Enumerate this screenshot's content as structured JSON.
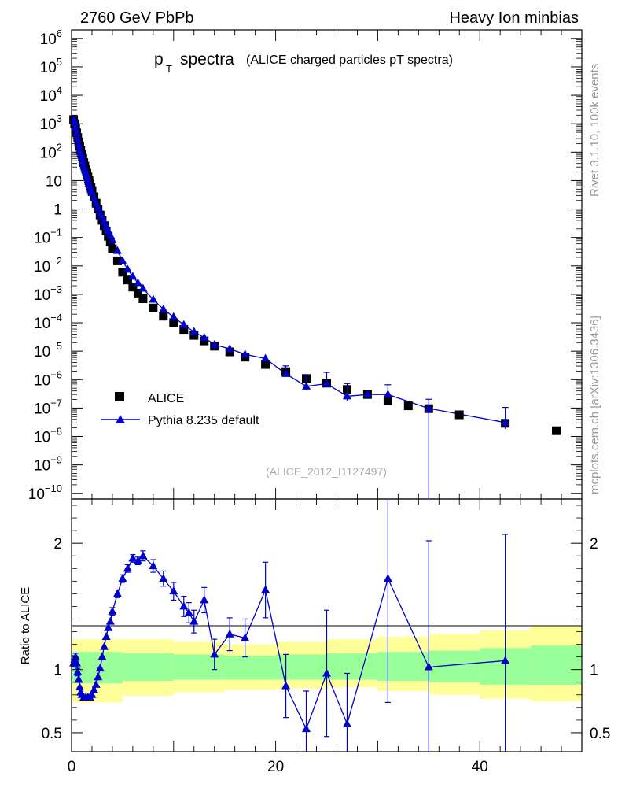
{
  "header": {
    "left": "2760 GeV PbPb",
    "right": "Heavy Ion minbias"
  },
  "side_labels": {
    "version": "Rivet 3.1.10,  100k events",
    "source": "mcplots.cern.ch [arXiv:1306.3436]"
  },
  "chart_data": [
    {
      "type": "scatter",
      "panel": "main",
      "title": "p",
      "title_subscript": "T",
      "title_main": "spectra",
      "subtitle": "(ALICE charged particles pT spectra)",
      "analysis_tag": "(ALICE_2012_I1127497)",
      "xlim": [
        0,
        50
      ],
      "yscale": "log",
      "ylim_log10": [
        -10.2,
        6.3
      ],
      "y_ticks": [
        {
          "exp": 6,
          "base": "10",
          "sup": "6"
        },
        {
          "exp": 5,
          "base": "10",
          "sup": "5"
        },
        {
          "exp": 4,
          "base": "10",
          "sup": "4"
        },
        {
          "exp": 3,
          "base": "10",
          "sup": "3"
        },
        {
          "exp": 2,
          "base": "10",
          "sup": "2"
        },
        {
          "exp": 1,
          "base": "10",
          "sup": ""
        },
        {
          "exp": 0,
          "base": "1",
          "sup": ""
        },
        {
          "exp": -1,
          "base": "10",
          "sup": "−1"
        },
        {
          "exp": -2,
          "base": "10",
          "sup": "−2"
        },
        {
          "exp": -3,
          "base": "10",
          "sup": "−3"
        },
        {
          "exp": -4,
          "base": "10",
          "sup": "−4"
        },
        {
          "exp": -5,
          "base": "10",
          "sup": "−5"
        },
        {
          "exp": -6,
          "base": "10",
          "sup": "−6"
        },
        {
          "exp": -7,
          "base": "10",
          "sup": "−7"
        },
        {
          "exp": -8,
          "base": "10",
          "sup": "−8"
        },
        {
          "exp": -9,
          "base": "10",
          "sup": "−9"
        },
        {
          "exp": -10,
          "base": "10",
          "sup": "−10"
        }
      ],
      "legend": [
        {
          "label": "ALICE",
          "marker": "square",
          "color": "#000000"
        },
        {
          "label": "Pythia 8.235 default",
          "marker": "triangle",
          "color": "#0000cc"
        }
      ],
      "series": [
        {
          "name": "ALICE",
          "color": "#000000",
          "points": [
            [
              0.2,
              1400
            ],
            [
              0.3,
              1000
            ],
            [
              0.4,
              700
            ],
            [
              0.5,
              480
            ],
            [
              0.6,
              330
            ],
            [
              0.7,
              230
            ],
            [
              0.8,
              160
            ],
            [
              0.9,
              115
            ],
            [
              1.0,
              82
            ],
            [
              1.1,
              60
            ],
            [
              1.2,
              43
            ],
            [
              1.3,
              32
            ],
            [
              1.4,
              24
            ],
            [
              1.5,
              18
            ],
            [
              1.6,
              13.5
            ],
            [
              1.7,
              10
            ],
            [
              1.8,
              7.6
            ],
            [
              1.9,
              5.8
            ],
            [
              2.0,
              4.4
            ],
            [
              2.2,
              2.7
            ],
            [
              2.4,
              1.6
            ],
            [
              2.6,
              1.0
            ],
            [
              2.8,
              0.62
            ],
            [
              3.0,
              0.4
            ],
            [
              3.2,
              0.26
            ],
            [
              3.4,
              0.17
            ],
            [
              3.6,
              0.11
            ],
            [
              3.8,
              0.07
            ],
            [
              4.0,
              0.04
            ],
            [
              4.5,
              0.015
            ],
            [
              5.0,
              0.006
            ],
            [
              5.5,
              0.0032
            ],
            [
              6.0,
              0.0018
            ],
            [
              6.5,
              0.0011
            ],
            [
              7.0,
              0.0007
            ],
            [
              8.0,
              0.00033
            ],
            [
              9.0,
              0.00017
            ],
            [
              10.0,
              0.0001
            ],
            [
              11.0,
              5.8e-05
            ],
            [
              12.0,
              3.6e-05
            ],
            [
              13.0,
              2.3e-05
            ],
            [
              14.0,
              1.5e-05
            ],
            [
              15.5,
              9.5e-06
            ],
            [
              17.0,
              6.2e-06
            ],
            [
              19.0,
              3.4e-06
            ],
            [
              21.0,
              1.9e-06
            ],
            [
              23.0,
              1.1e-06
            ],
            [
              25.0,
              7.5e-07
            ],
            [
              27.0,
              4.5e-07
            ],
            [
              29.0,
              3e-07
            ],
            [
              31.0,
              1.8e-07
            ],
            [
              33.0,
              1.2e-07
            ],
            [
              35.0,
              9.5e-08
            ],
            [
              38.0,
              5.8e-08
            ],
            [
              42.5,
              2.9e-08
            ],
            [
              47.5,
              1.6e-08
            ]
          ]
        },
        {
          "name": "Pythia 8.235 default",
          "color": "#0000cc",
          "points": [
            [
              0.2,
              1420,
              0
            ],
            [
              0.3,
              1060,
              0
            ],
            [
              0.4,
              720,
              0
            ],
            [
              0.5,
              460,
              0
            ],
            [
              0.6,
              290,
              0
            ],
            [
              0.7,
              185,
              0
            ],
            [
              0.8,
              124,
              0
            ],
            [
              0.9,
              89,
              0
            ],
            [
              1.0,
              65,
              0
            ],
            [
              1.1,
              47,
              0
            ],
            [
              1.2,
              34,
              0
            ],
            [
              1.3,
              25,
              0
            ],
            [
              1.4,
              18.6,
              0
            ],
            [
              1.5,
              14,
              0
            ],
            [
              1.6,
              10.5,
              0
            ],
            [
              1.7,
              8,
              0
            ],
            [
              1.8,
              6.1,
              0
            ],
            [
              1.9,
              4.7,
              0
            ],
            [
              2.0,
              3.7,
              0
            ],
            [
              2.2,
              2.4,
              0
            ],
            [
              2.4,
              1.6,
              0
            ],
            [
              2.6,
              1.1,
              0
            ],
            [
              2.8,
              0.72,
              0
            ],
            [
              3.0,
              0.5,
              0
            ],
            [
              3.2,
              0.34,
              0
            ],
            [
              3.4,
              0.24,
              0
            ],
            [
              3.6,
              0.17,
              0
            ],
            [
              3.8,
              0.12,
              0
            ],
            [
              4.0,
              0.08,
              0
            ],
            [
              4.5,
              0.034,
              0
            ],
            [
              5.0,
              0.015,
              0
            ],
            [
              5.5,
              0.0075,
              0
            ],
            [
              6.0,
              0.0042,
              0
            ],
            [
              6.5,
              0.0025,
              0
            ],
            [
              7.0,
              0.0016,
              0
            ],
            [
              8.0,
              0.00066,
              0
            ],
            [
              9.0,
              0.0003,
              0
            ],
            [
              10.0,
              0.00016,
              0
            ],
            [
              11.0,
              8.5e-05,
              0
            ],
            [
              12.0,
              4.8e-05,
              0
            ],
            [
              13.0,
              3e-05,
              0
            ],
            [
              14.0,
              1.7e-05,
              0
            ],
            [
              15.5,
              1.2e-05,
              0
            ],
            [
              17.0,
              7.8e-06,
              0
            ],
            [
              19.0,
              5.5e-06,
              0
            ],
            [
              21.0,
              1.6e-06,
              0.15
            ],
            [
              23.0,
              5.8e-07,
              0.25
            ],
            [
              25.0,
              7.2e-07,
              0.25
            ],
            [
              27.0,
              2.6e-07,
              0.3
            ],
            [
              29.0,
              3e-07,
              0
            ],
            [
              31.0,
              3e-07,
              0.2
            ],
            [
              35.0,
              9.7e-08,
              10
            ],
            [
              42.5,
              3.1e-08,
              0.4
            ]
          ]
        }
      ]
    },
    {
      "type": "line",
      "panel": "ratio",
      "ylabel": "Ratio to ALICE",
      "ylim": [
        0.35,
        2.35
      ],
      "y_tick_labels": [
        {
          "value": 2,
          "label": "2"
        },
        {
          "value": 1,
          "label": "1"
        },
        {
          "value": 0.5,
          "label": "0.5"
        }
      ],
      "x_tick_labels": [
        {
          "value": 0,
          "label": "0"
        },
        {
          "value": 20,
          "label": "20"
        },
        {
          "value": 40,
          "label": "40"
        }
      ],
      "reference_line": 1,
      "bands": [
        {
          "x": [
            0,
            5,
            10,
            15,
            20,
            25,
            30,
            35,
            40,
            45,
            50
          ],
          "lo": [
            0.74,
            0.79,
            0.82,
            0.84,
            0.85,
            0.87,
            0.86,
            0.83,
            0.8,
            0.77,
            0.75
          ],
          "hi": [
            1.24,
            1.24,
            1.22,
            1.2,
            1.2,
            1.22,
            1.24,
            1.26,
            1.28,
            1.31,
            1.35
          ],
          "color": "#ffff99",
          "name": "yellow-band"
        },
        {
          "x": [
            0,
            5,
            10,
            15,
            20,
            25,
            30,
            35,
            40,
            45,
            50
          ],
          "lo": [
            0.89,
            0.91,
            0.92,
            0.92,
            0.92,
            0.93,
            0.92,
            0.91,
            0.9,
            0.88,
            0.88
          ],
          "hi": [
            1.14,
            1.13,
            1.12,
            1.11,
            1.11,
            1.12,
            1.13,
            1.14,
            1.15,
            1.17,
            1.19
          ],
          "color": "#99ff99",
          "name": "green-band"
        }
      ],
      "series": [
        {
          "name": "Pythia 8.235 default",
          "color": "#0000cc",
          "points": [
            [
              0.2,
              1.05,
              0.03
            ],
            [
              0.3,
              1.08,
              0.03
            ],
            [
              0.4,
              1.1,
              0.03
            ],
            [
              0.5,
              1.05,
              0.03
            ],
            [
              0.6,
              0.98,
              0.03
            ],
            [
              0.7,
              0.92,
              0.02
            ],
            [
              0.8,
              0.86,
              0.02
            ],
            [
              0.9,
              0.82,
              0.02
            ],
            [
              1.0,
              0.8,
              0.02
            ],
            [
              1.2,
              0.78,
              0.02
            ],
            [
              1.4,
              0.78,
              0.02
            ],
            [
              1.6,
              0.78,
              0.02
            ],
            [
              1.8,
              0.78,
              0.02
            ],
            [
              2.0,
              0.8,
              0.02
            ],
            [
              2.2,
              0.84,
              0.02
            ],
            [
              2.4,
              0.88,
              0.02
            ],
            [
              2.6,
              0.94,
              0.02
            ],
            [
              2.8,
              1.01,
              0.02
            ],
            [
              3.0,
              1.1,
              0.02
            ],
            [
              3.2,
              1.18,
              0.02
            ],
            [
              3.4,
              1.26,
              0.02
            ],
            [
              3.6,
              1.33,
              0.02
            ],
            [
              3.8,
              1.38,
              0.02
            ],
            [
              4.0,
              1.46,
              0.03
            ],
            [
              4.5,
              1.6,
              0.03
            ],
            [
              5.0,
              1.72,
              0.03
            ],
            [
              5.5,
              1.8,
              0.03
            ],
            [
              6.0,
              1.88,
              0.03
            ],
            [
              6.5,
              1.86,
              0.03
            ],
            [
              7.0,
              1.9,
              0.04
            ],
            [
              8.0,
              1.82,
              0.05
            ],
            [
              9.0,
              1.72,
              0.06
            ],
            [
              10.0,
              1.62,
              0.07
            ],
            [
              11.0,
              1.5,
              0.08
            ],
            [
              11.5,
              1.45,
              0.08
            ],
            [
              12.0,
              1.38,
              0.09
            ],
            [
              13.0,
              1.55,
              0.1
            ],
            [
              14.0,
              1.12,
              0.12
            ],
            [
              15.5,
              1.28,
              0.13
            ],
            [
              17.0,
              1.25,
              0.15
            ],
            [
              19.0,
              1.63,
              0.22
            ],
            [
              21.0,
              0.87,
              0.25
            ],
            [
              23.0,
              0.53,
              0.3
            ],
            [
              25.0,
              0.97,
              0.5
            ],
            [
              27.0,
              0.57,
              0.4
            ],
            [
              31.0,
              1.72,
              0.98
            ],
            [
              35.0,
              1.02,
              1.0
            ],
            [
              42.5,
              1.07,
              1.0
            ]
          ]
        }
      ]
    }
  ]
}
